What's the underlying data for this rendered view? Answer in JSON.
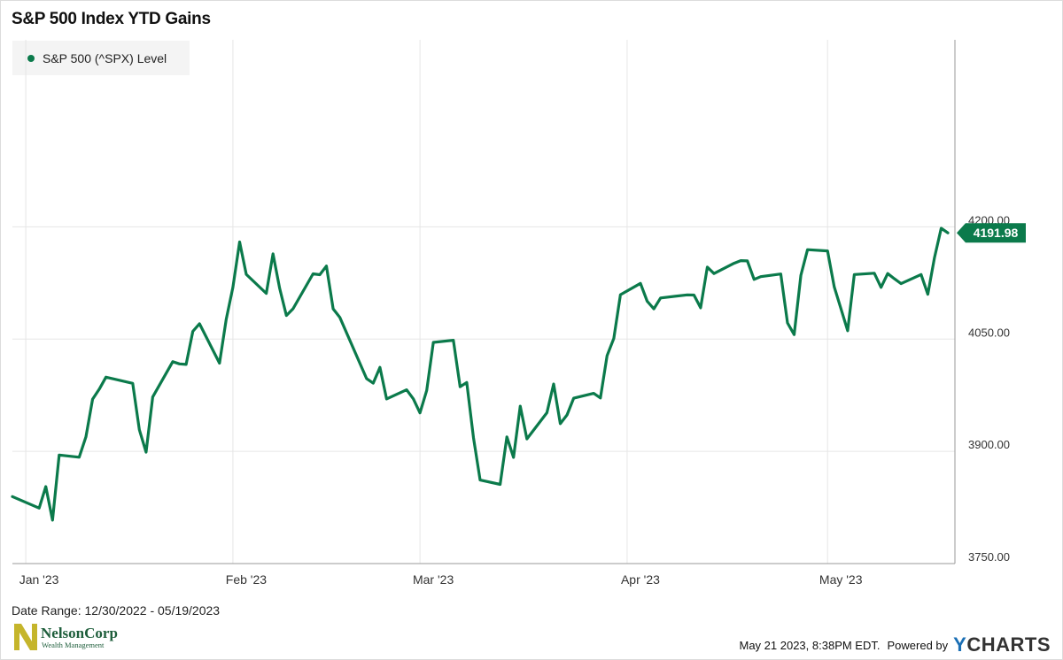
{
  "colors": {
    "line": "#0b7a4b",
    "grid": "#e6e6e6",
    "axis": "#9a9a9a",
    "logo_gold": "#c5b52b",
    "logo_green": "#1e5e3b"
  },
  "chart_data": {
    "type": "line",
    "title": "S&P 500 Index YTD Gains",
    "legend": "top-left",
    "xlabel": "",
    "ylabel": "",
    "grid": true,
    "ylim": [
      3750,
      4450
    ],
    "y_ticks": [
      "4200.00",
      "4050.00",
      "3900.00",
      "3750.00"
    ],
    "x_tick_labels": [
      "Jan '23",
      "Feb '23",
      "Mar '23",
      "Apr '23",
      "May '23"
    ],
    "last_value_label": "4191.98",
    "series": [
      {
        "name": "S&P 500 (^SPX) Level",
        "x": [
          "2022-12-30",
          "2023-01-03",
          "2023-01-04",
          "2023-01-05",
          "2023-01-06",
          "2023-01-09",
          "2023-01-10",
          "2023-01-11",
          "2023-01-12",
          "2023-01-13",
          "2023-01-17",
          "2023-01-18",
          "2023-01-19",
          "2023-01-20",
          "2023-01-23",
          "2023-01-24",
          "2023-01-25",
          "2023-01-26",
          "2023-01-27",
          "2023-01-30",
          "2023-01-31",
          "2023-02-01",
          "2023-02-02",
          "2023-02-03",
          "2023-02-06",
          "2023-02-07",
          "2023-02-08",
          "2023-02-09",
          "2023-02-10",
          "2023-02-13",
          "2023-02-14",
          "2023-02-15",
          "2023-02-16",
          "2023-02-17",
          "2023-02-21",
          "2023-02-22",
          "2023-02-23",
          "2023-02-24",
          "2023-02-27",
          "2023-02-28",
          "2023-03-01",
          "2023-03-02",
          "2023-03-03",
          "2023-03-06",
          "2023-03-07",
          "2023-03-08",
          "2023-03-09",
          "2023-03-10",
          "2023-03-13",
          "2023-03-14",
          "2023-03-15",
          "2023-03-16",
          "2023-03-17",
          "2023-03-20",
          "2023-03-21",
          "2023-03-22",
          "2023-03-23",
          "2023-03-24",
          "2023-03-27",
          "2023-03-28",
          "2023-03-29",
          "2023-03-30",
          "2023-03-31",
          "2023-04-03",
          "2023-04-04",
          "2023-04-05",
          "2023-04-06",
          "2023-04-10",
          "2023-04-11",
          "2023-04-12",
          "2023-04-13",
          "2023-04-14",
          "2023-04-17",
          "2023-04-18",
          "2023-04-19",
          "2023-04-20",
          "2023-04-21",
          "2023-04-24",
          "2023-04-25",
          "2023-04-26",
          "2023-04-27",
          "2023-04-28",
          "2023-05-01",
          "2023-05-02",
          "2023-05-03",
          "2023-05-04",
          "2023-05-05",
          "2023-05-08",
          "2023-05-09",
          "2023-05-10",
          "2023-05-11",
          "2023-05-12",
          "2023-05-15",
          "2023-05-16",
          "2023-05-17",
          "2023-05-18",
          "2023-05-19"
        ],
        "values": [
          3839.5,
          3824.1,
          3852.9,
          3808.1,
          3895.1,
          3892.1,
          3919.3,
          3969.6,
          3983.2,
          3999.1,
          3990.9,
          3928.9,
          3898.9,
          3972.6,
          4019.8,
          4016.9,
          4016.2,
          4060.4,
          4070.6,
          4017.8,
          4076.6,
          4119.2,
          4179.8,
          4136.5,
          4111.1,
          4164.0,
          4117.9,
          4081.5,
          4090.5,
          4137.3,
          4136.1,
          4147.6,
          4090.4,
          4079.1,
          3997.3,
          3991.1,
          4012.3,
          3970.0,
          3982.2,
          3970.2,
          3951.4,
          3981.4,
          4045.6,
          4048.4,
          3986.4,
          3992.0,
          3918.3,
          3861.6,
          3855.8,
          3919.3,
          3891.9,
          3960.3,
          3916.6,
          3951.6,
          3990.0,
          3937.0,
          3948.7,
          3970.99,
          3977.5,
          3971.3,
          4027.8,
          4050.8,
          4109.3,
          4124.5,
          4100.6,
          4090.4,
          4105.0,
          4109.1,
          4108.9,
          4091.9,
          4146.2,
          4137.6,
          4151.3,
          4154.9,
          4154.5,
          4129.8,
          4133.5,
          4137.0,
          4071.6,
          4055.99,
          4135.35,
          4169.5,
          4167.9,
          4119.6,
          4090.75,
          4061.2,
          4136.3,
          4138.1,
          4119.2,
          4137.6,
          4130.6,
          4124.1,
          4136.3,
          4109.9,
          4158.8,
          4198.1,
          4191.98
        ]
      }
    ]
  },
  "footer": {
    "date_range": "Date Range: 12/30/2022 - 05/19/2023",
    "timestamp": "May 21 2023, 8:38PM EDT.",
    "powered_by": "Powered by",
    "brand_y": "Y",
    "brand_rest": "CHARTS",
    "logo_name": "NelsonCorp",
    "logo_sub": "Wealth Management"
  }
}
